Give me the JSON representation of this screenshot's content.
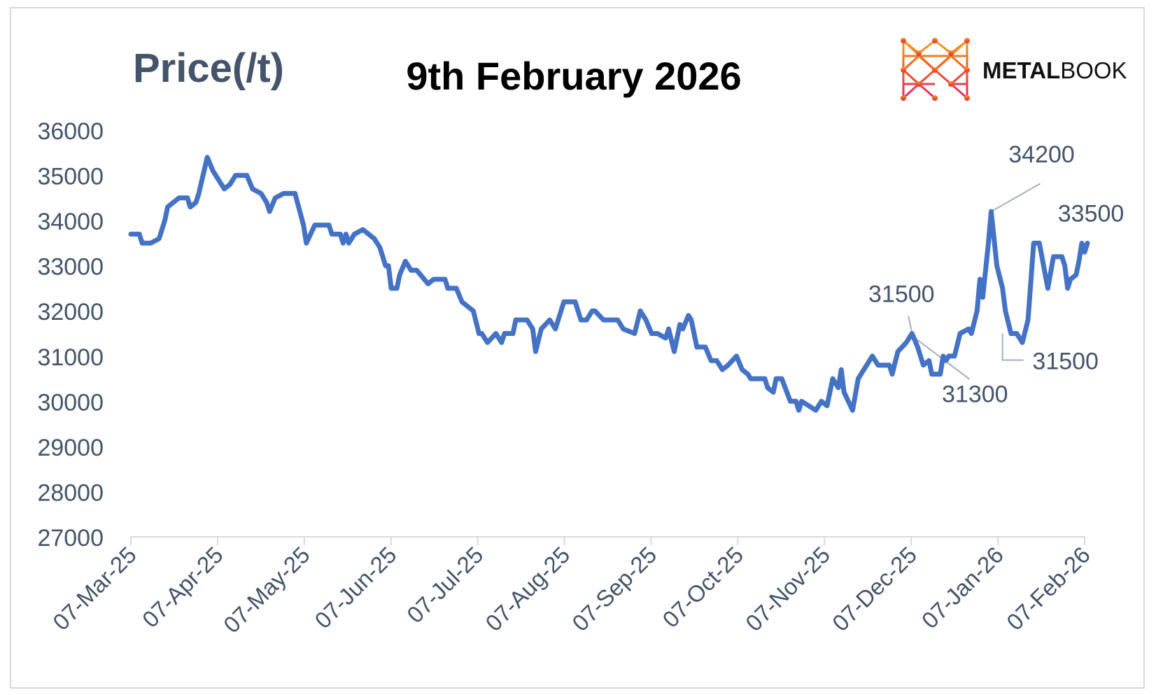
{
  "header": {
    "ylabel": "Price(/t)",
    "title": "9th February 2026",
    "logo_text_bold": "METAL",
    "logo_text_light": "BOOK"
  },
  "colors": {
    "line": "#4472C4",
    "axis_text": "#44546A",
    "title": "#000000",
    "callout": "#A6B0BC",
    "logo_gradient": [
      "#F4A21C",
      "#EE5A24",
      "#E6256E"
    ]
  },
  "chart_data": {
    "type": "line",
    "title": "9th February 2026",
    "ylabel": "Price(/t)",
    "xlabel": "",
    "ylim": [
      27000,
      36000
    ],
    "yticks": [
      "36000",
      "35000",
      "34000",
      "33000",
      "32000",
      "31000",
      "30000",
      "29000",
      "28000",
      "27000"
    ],
    "xlim": [
      "2025-03-07",
      "2026-02-07"
    ],
    "xtick_labels": [
      "07-Mar-25",
      "07-Apr-25",
      "07-May-25",
      "07-Jun-25",
      "07-Jul-25",
      "07-Aug-25",
      "07-Sep-25",
      "07-Oct-25",
      "07-Nov-25",
      "07-Dec-25",
      "07-Jan-26",
      "07-Feb-26"
    ],
    "grid": false,
    "series": [
      {
        "points": [
          [
            "2025-03-07",
            33700
          ],
          [
            "2025-03-10",
            33700
          ],
          [
            "2025-03-11",
            33500
          ],
          [
            "2025-03-14",
            33500
          ],
          [
            "2025-03-17",
            33600
          ],
          [
            "2025-03-19",
            34000
          ],
          [
            "2025-03-20",
            34300
          ],
          [
            "2025-03-22",
            34400
          ],
          [
            "2025-03-24",
            34500
          ],
          [
            "2025-03-27",
            34500
          ],
          [
            "2025-03-28",
            34300
          ],
          [
            "2025-03-30",
            34400
          ],
          [
            "2025-03-31",
            34600
          ],
          [
            "2025-04-03",
            35400
          ],
          [
            "2025-04-05",
            35100
          ],
          [
            "2025-04-09",
            34700
          ],
          [
            "2025-04-11",
            34800
          ],
          [
            "2025-04-13",
            35000
          ],
          [
            "2025-04-17",
            35000
          ],
          [
            "2025-04-19",
            34700
          ],
          [
            "2025-04-22",
            34600
          ],
          [
            "2025-04-24",
            34400
          ],
          [
            "2025-04-25",
            34200
          ],
          [
            "2025-04-27",
            34500
          ],
          [
            "2025-04-30",
            34600
          ],
          [
            "2025-05-04",
            34600
          ],
          [
            "2025-05-07",
            33900
          ],
          [
            "2025-05-08",
            33500
          ],
          [
            "2025-05-11",
            33900
          ],
          [
            "2025-05-16",
            33900
          ],
          [
            "2025-05-17",
            33700
          ],
          [
            "2025-05-20",
            33700
          ],
          [
            "2025-05-21",
            33500
          ],
          [
            "2025-05-22",
            33700
          ],
          [
            "2025-05-23",
            33500
          ],
          [
            "2025-05-25",
            33700
          ],
          [
            "2025-05-28",
            33800
          ],
          [
            "2025-05-30",
            33700
          ],
          [
            "2025-06-01",
            33600
          ],
          [
            "2025-06-03",
            33400
          ],
          [
            "2025-06-04",
            33200
          ],
          [
            "2025-06-05",
            33000
          ],
          [
            "2025-06-06",
            33000
          ],
          [
            "2025-06-07",
            32500
          ],
          [
            "2025-06-09",
            32500
          ],
          [
            "2025-06-10",
            32800
          ],
          [
            "2025-06-12",
            33100
          ],
          [
            "2025-06-14",
            32900
          ],
          [
            "2025-06-16",
            32900
          ],
          [
            "2025-06-20",
            32600
          ],
          [
            "2025-06-22",
            32700
          ],
          [
            "2025-06-26",
            32700
          ],
          [
            "2025-06-27",
            32500
          ],
          [
            "2025-06-30",
            32500
          ],
          [
            "2025-07-02",
            32200
          ],
          [
            "2025-07-04",
            32100
          ],
          [
            "2025-07-06",
            32000
          ],
          [
            "2025-07-08",
            31500
          ],
          [
            "2025-07-09",
            31500
          ],
          [
            "2025-07-11",
            31300
          ],
          [
            "2025-07-14",
            31500
          ],
          [
            "2025-07-16",
            31300
          ],
          [
            "2025-07-17",
            31500
          ],
          [
            "2025-07-20",
            31500
          ],
          [
            "2025-07-21",
            31800
          ],
          [
            "2025-07-25",
            31800
          ],
          [
            "2025-07-27",
            31600
          ],
          [
            "2025-07-28",
            31100
          ],
          [
            "2025-07-30",
            31600
          ],
          [
            "2025-08-02",
            31800
          ],
          [
            "2025-08-04",
            31600
          ],
          [
            "2025-08-07",
            32200
          ],
          [
            "2025-08-11",
            32200
          ],
          [
            "2025-08-13",
            31800
          ],
          [
            "2025-08-15",
            31800
          ],
          [
            "2025-08-17",
            32000
          ],
          [
            "2025-08-18",
            32000
          ],
          [
            "2025-08-21",
            31800
          ],
          [
            "2025-08-24",
            31800
          ],
          [
            "2025-08-26",
            31800
          ],
          [
            "2025-08-28",
            31600
          ],
          [
            "2025-08-30",
            31550
          ],
          [
            "2025-09-01",
            31500
          ],
          [
            "2025-09-03",
            32000
          ],
          [
            "2025-09-05",
            31800
          ],
          [
            "2025-09-07",
            31500
          ],
          [
            "2025-09-09",
            31500
          ],
          [
            "2025-09-12",
            31400
          ],
          [
            "2025-09-13",
            31600
          ],
          [
            "2025-09-15",
            31100
          ],
          [
            "2025-09-17",
            31700
          ],
          [
            "2025-09-18",
            31600
          ],
          [
            "2025-09-20",
            31900
          ],
          [
            "2025-09-21",
            31800
          ],
          [
            "2025-09-23",
            31200
          ],
          [
            "2025-09-26",
            31200
          ],
          [
            "2025-09-28",
            30900
          ],
          [
            "2025-09-30",
            30900
          ],
          [
            "2025-10-02",
            30700
          ],
          [
            "2025-10-04",
            30800
          ],
          [
            "2025-10-07",
            31000
          ],
          [
            "2025-10-09",
            30700
          ],
          [
            "2025-10-11",
            30600
          ],
          [
            "2025-10-12",
            30500
          ],
          [
            "2025-10-17",
            30500
          ],
          [
            "2025-10-18",
            30300
          ],
          [
            "2025-10-20",
            30200
          ],
          [
            "2025-10-21",
            30500
          ],
          [
            "2025-10-23",
            30500
          ],
          [
            "2025-10-26",
            30000
          ],
          [
            "2025-10-28",
            30000
          ],
          [
            "2025-10-29",
            29800
          ],
          [
            "2025-10-30",
            30000
          ],
          [
            "2025-11-04",
            29800
          ],
          [
            "2025-11-06",
            30000
          ],
          [
            "2025-11-08",
            29900
          ],
          [
            "2025-11-10",
            30500
          ],
          [
            "2025-11-12",
            30300
          ],
          [
            "2025-11-13",
            30700
          ],
          [
            "2025-11-14",
            30200
          ],
          [
            "2025-11-17",
            29800
          ],
          [
            "2025-11-19",
            30500
          ],
          [
            "2025-11-21",
            30700
          ],
          [
            "2025-11-24",
            31000
          ],
          [
            "2025-11-26",
            30800
          ],
          [
            "2025-11-30",
            30800
          ],
          [
            "2025-12-01",
            30600
          ],
          [
            "2025-12-03",
            31100
          ],
          [
            "2025-12-06",
            31300
          ],
          [
            "2025-12-08",
            31500
          ],
          [
            "2025-12-10",
            31200
          ],
          [
            "2025-12-12",
            30800
          ],
          [
            "2025-12-14",
            30900
          ],
          [
            "2025-12-15",
            30600
          ],
          [
            "2025-12-18",
            30600
          ],
          [
            "2025-12-19",
            31000
          ],
          [
            "2025-12-20",
            30900
          ],
          [
            "2025-12-21",
            31000
          ],
          [
            "2025-12-23",
            31000
          ],
          [
            "2025-12-25",
            31500
          ],
          [
            "2025-12-28",
            31600
          ],
          [
            "2025-12-29",
            31500
          ],
          [
            "2025-12-31",
            32000
          ],
          [
            "2026-01-01",
            32700
          ],
          [
            "2026-01-02",
            32300
          ],
          [
            "2026-01-04",
            33500
          ],
          [
            "2026-01-05",
            34200
          ],
          [
            "2026-01-07",
            33000
          ],
          [
            "2026-01-09",
            32500
          ],
          [
            "2026-01-10",
            32000
          ],
          [
            "2026-01-12",
            31500
          ],
          [
            "2026-01-14",
            31500
          ],
          [
            "2026-01-16",
            31300
          ],
          [
            "2026-01-18",
            31800
          ],
          [
            "2026-01-20",
            33500
          ],
          [
            "2026-01-22",
            33500
          ],
          [
            "2026-01-25",
            32500
          ],
          [
            "2026-01-27",
            33200
          ],
          [
            "2026-01-30",
            33200
          ],
          [
            "2026-01-31",
            33000
          ],
          [
            "2026-02-01",
            32500
          ],
          [
            "2026-02-02",
            32700
          ],
          [
            "2026-02-04",
            32800
          ],
          [
            "2026-02-05",
            33100
          ],
          [
            "2026-02-06",
            33500
          ],
          [
            "2026-02-07",
            33300
          ],
          [
            "2026-02-08",
            33500
          ]
        ]
      }
    ],
    "annotations": [
      {
        "text": "34200",
        "x": "2026-01-05",
        "y": 34200
      },
      {
        "text": "33500",
        "x": "2026-02-08",
        "y": 33500
      },
      {
        "text": "31500",
        "x": "2025-12-08",
        "y": 31500
      },
      {
        "text": "31300",
        "x": "2025-12-08",
        "y": 31450
      },
      {
        "text": "31500",
        "x": "2026-01-09",
        "y": 31500
      }
    ]
  }
}
